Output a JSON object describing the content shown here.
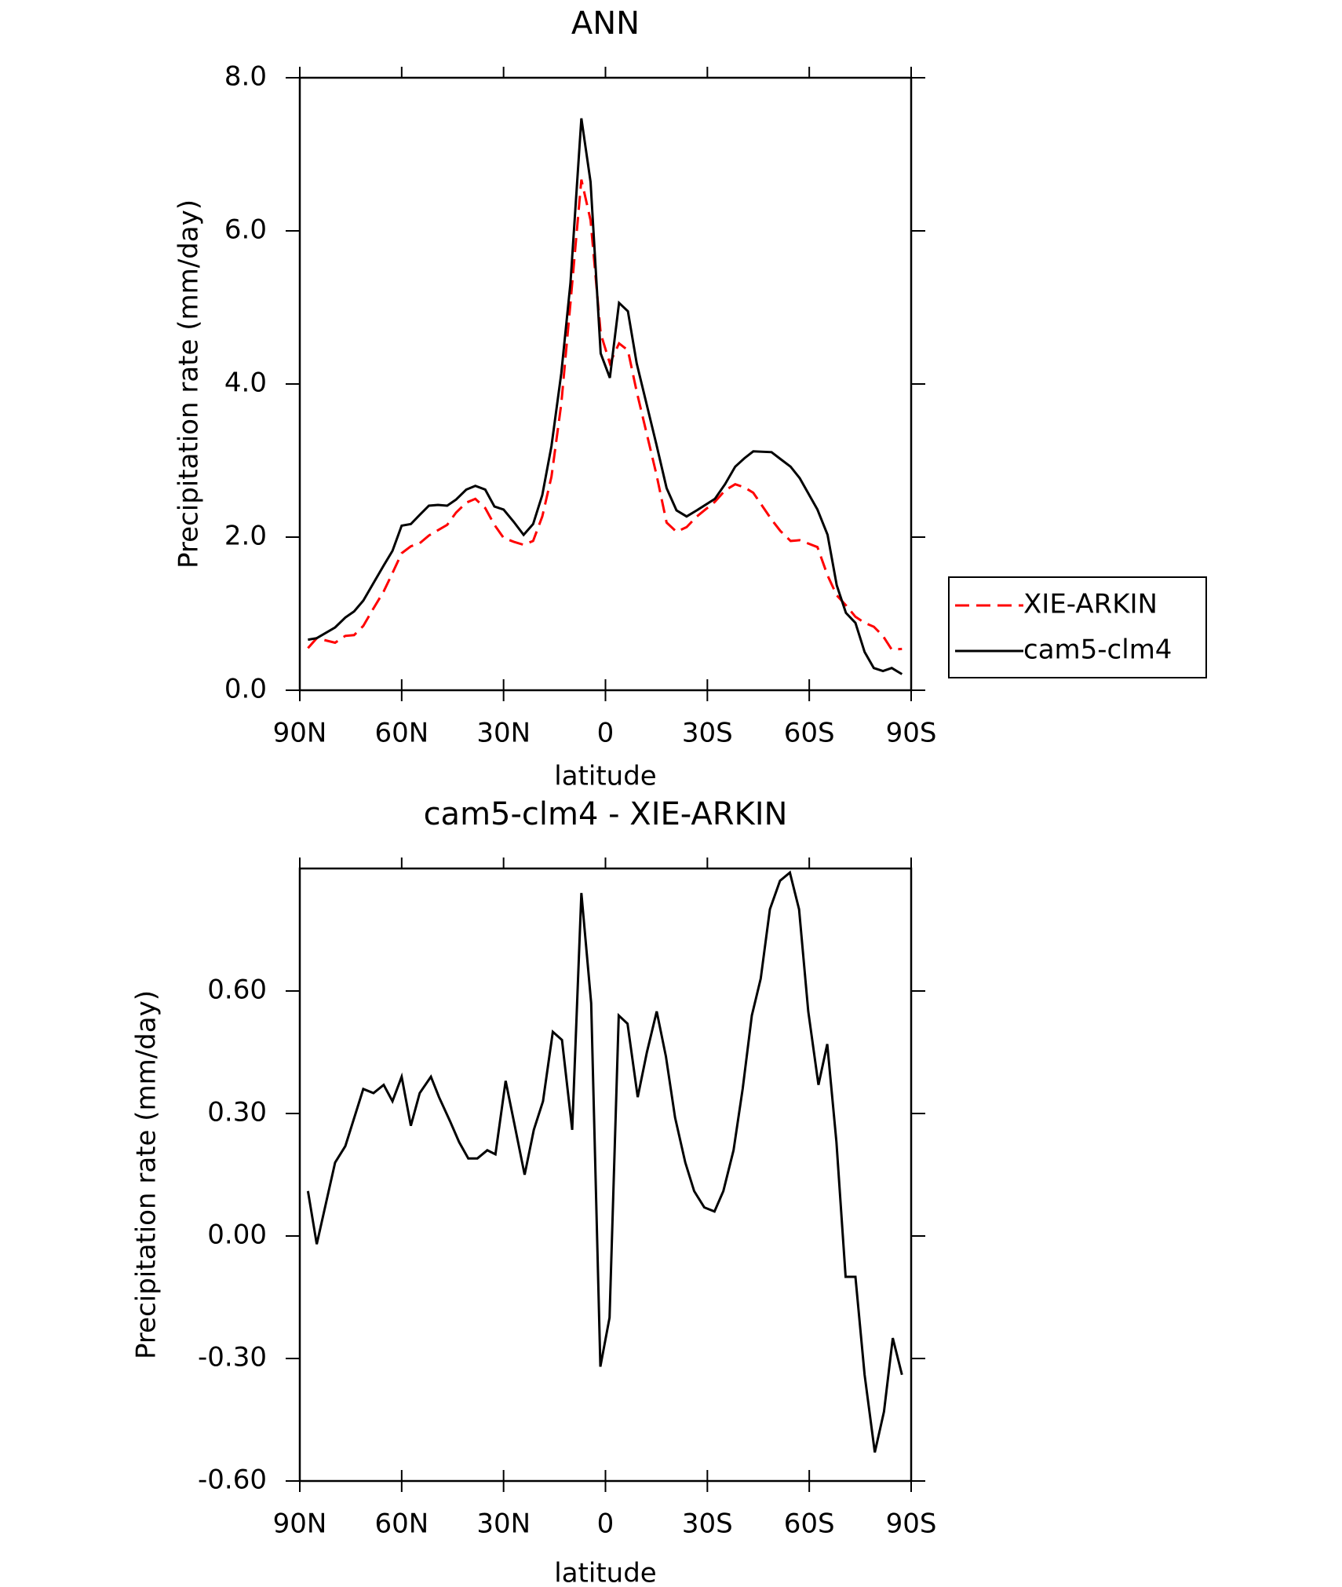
{
  "chart_data": [
    {
      "type": "line",
      "title": "ANN",
      "xlabel": "latitude",
      "ylabel": "Precipitation rate (mm/day)",
      "x": [
        87.6,
        85.0,
        79.6,
        76.6,
        74.0,
        71.3,
        68.3,
        65.3,
        62.7,
        60.0,
        57.3,
        54.7,
        52.0,
        49.3,
        46.6,
        44.0,
        41.0,
        38.3,
        35.4,
        32.7,
        30.0,
        27.0,
        24.1,
        21.3,
        18.6,
        15.9,
        13.0,
        10.3,
        7.1,
        4.4,
        1.4,
        -1.3,
        -4.0,
        -6.6,
        -9.2,
        -15.0,
        -18.0,
        -20.9,
        -23.9,
        -26.9,
        -32.2,
        -35.2,
        -38.2,
        -40.9,
        -43.5,
        -48.9,
        -51.5,
        -54.5,
        -57.2,
        -62.4,
        -65.4,
        -68.1,
        -70.8,
        -73.6,
        -76.3,
        -79.0,
        -81.7,
        -84.3,
        -87.3
      ],
      "series": [
        {
          "name": "XIE-ARKIN",
          "color": "#ff0000",
          "linestyle": "dashed",
          "values": [
            0.55,
            0.68,
            0.62,
            0.71,
            0.72,
            0.84,
            1.07,
            1.29,
            1.53,
            1.79,
            1.88,
            1.92,
            2.02,
            2.09,
            2.16,
            2.32,
            2.45,
            2.5,
            2.38,
            2.16,
            1.99,
            1.94,
            1.9,
            1.95,
            2.27,
            2.79,
            3.74,
            5.06,
            6.67,
            6.14,
            4.66,
            4.27,
            4.53,
            4.44,
            3.9,
            2.82,
            2.19,
            2.07,
            2.13,
            2.27,
            2.46,
            2.61,
            2.69,
            2.65,
            2.58,
            2.23,
            2.08,
            1.95,
            1.96,
            1.87,
            1.5,
            1.24,
            1.11,
            0.96,
            0.88,
            0.83,
            0.71,
            0.53,
            0.54
          ]
        },
        {
          "name": "cam5-clm4",
          "color": "#000000",
          "linestyle": "solid",
          "values": [
            0.66,
            0.68,
            0.82,
            0.95,
            1.03,
            1.17,
            1.4,
            1.63,
            1.82,
            2.15,
            2.17,
            2.29,
            2.41,
            2.42,
            2.41,
            2.49,
            2.62,
            2.67,
            2.62,
            2.4,
            2.36,
            2.2,
            2.03,
            2.17,
            2.55,
            3.19,
            4.14,
            5.32,
            7.47,
            6.64,
            4.4,
            4.08,
            5.06,
            4.95,
            4.27,
            3.21,
            2.64,
            2.35,
            2.27,
            2.35,
            2.5,
            2.69,
            2.92,
            3.03,
            3.12,
            3.11,
            3.02,
            2.92,
            2.77,
            2.36,
            2.03,
            1.37,
            1.01,
            0.88,
            0.5,
            0.29,
            0.25,
            0.29,
            0.21
          ]
        }
      ],
      "xlim": [
        90,
        -90
      ],
      "xticks": [
        {
          "value": 90,
          "label": "90N"
        },
        {
          "value": 60,
          "label": "60N"
        },
        {
          "value": 30,
          "label": "30N"
        },
        0,
        {
          "value": -30,
          "label": "30S"
        },
        {
          "value": -60,
          "label": "60S"
        },
        {
          "value": -90,
          "label": "90S"
        }
      ],
      "ylim": [
        0,
        8
      ],
      "yticks": [
        {
          "value": 0,
          "label": "0.0"
        },
        {
          "value": 2,
          "label": "2.0"
        },
        {
          "value": 4,
          "label": "4.0"
        },
        {
          "value": 6,
          "label": "6.0"
        },
        {
          "value": 8,
          "label": "8.0"
        }
      ],
      "legend": "right"
    },
    {
      "type": "line",
      "title": "cam5-clm4 - XIE-ARKIN",
      "xlabel": "latitude",
      "ylabel": "Precipitation rate (mm/day)",
      "color": "#000000",
      "x": [
        87.6,
        85.0,
        79.6,
        76.6,
        71.3,
        68.3,
        65.3,
        62.7,
        60.0,
        57.3,
        54.7,
        51.4,
        49.0,
        45.7,
        43.1,
        40.4,
        37.7,
        34.8,
        32.4,
        29.4,
        26.7,
        23.8,
        21.1,
        18.4,
        15.5,
        12.8,
        9.8,
        7.1,
        4.2,
        1.5,
        -1.2,
        -3.9,
        -6.5,
        -9.5,
        -12.2,
        -15.1,
        -17.8,
        -20.5,
        -23.5,
        -26.1,
        -29.1,
        -32.1,
        -34.7,
        -37.7,
        -40.4,
        -43.1,
        -45.7,
        -48.4,
        -51.4,
        -54.3,
        -57.0,
        -59.7,
        -62.7,
        -65.3,
        -68.0,
        -70.7,
        -73.6,
        -76.3,
        -79.3,
        -82.0,
        -84.6,
        -87.3
      ],
      "values": [
        0.11,
        -0.02,
        0.18,
        0.22,
        0.36,
        0.35,
        0.37,
        0.33,
        0.39,
        0.27,
        0.35,
        0.39,
        0.34,
        0.28,
        0.23,
        0.19,
        0.19,
        0.21,
        0.2,
        0.38,
        0.27,
        0.15,
        0.26,
        0.33,
        0.5,
        0.48,
        0.26,
        0.84,
        0.57,
        -0.32,
        -0.2,
        0.54,
        0.52,
        0.34,
        0.45,
        0.55,
        0.44,
        0.29,
        0.18,
        0.11,
        0.07,
        0.06,
        0.11,
        0.21,
        0.36,
        0.54,
        0.63,
        0.8,
        0.87,
        0.89,
        0.8,
        0.55,
        0.37,
        0.47,
        0.23,
        -0.1,
        -0.1,
        -0.34,
        -0.53,
        -0.43,
        -0.25,
        -0.34
      ],
      "xlim": [
        90,
        -90
      ],
      "xticks": [
        {
          "value": 90,
          "label": "90N"
        },
        {
          "value": 60,
          "label": "60N"
        },
        {
          "value": 30,
          "label": "30N"
        },
        0,
        {
          "value": -30,
          "label": "30S"
        },
        {
          "value": -60,
          "label": "60S"
        },
        {
          "value": -90,
          "label": "90S"
        }
      ],
      "ylim": [
        -0.6,
        0.9
      ],
      "yticks": [
        {
          "value": -0.6,
          "label": "-0.60"
        },
        {
          "value": -0.3,
          "label": "-0.30"
        },
        {
          "value": 0,
          "label": "0.00"
        },
        {
          "value": 0.3,
          "label": "0.30"
        },
        {
          "value": 0.6,
          "label": "0.60"
        }
      ]
    }
  ]
}
